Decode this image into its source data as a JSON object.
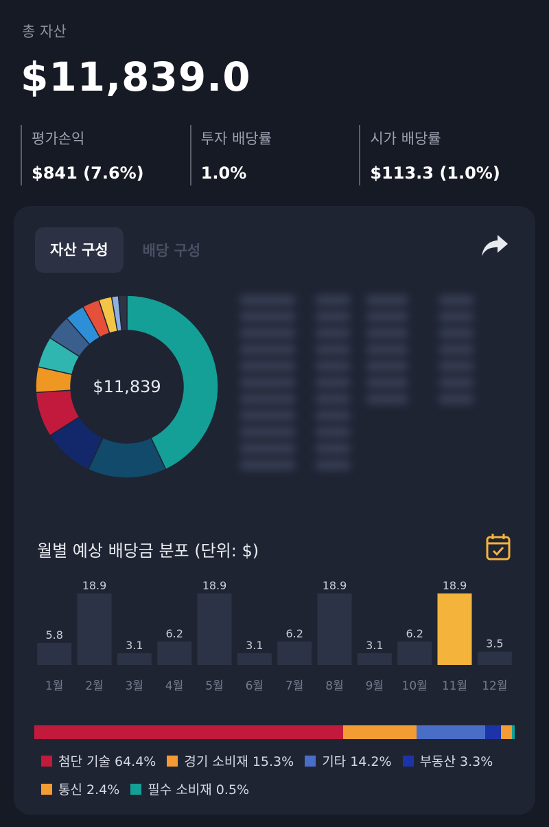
{
  "header": {
    "total_label": "총 자산",
    "total_value": "$11,839.0"
  },
  "stats": [
    {
      "label": "평가손익",
      "value": "$841 (7.6%)"
    },
    {
      "label": "투자 배당률",
      "value": "1.0%"
    },
    {
      "label": "시가 배당률",
      "value": "$113.3 (1.0%)"
    }
  ],
  "card": {
    "tab_active": "자산 구성",
    "tab_inactive": "배당 구성",
    "donut_center": "$11,839",
    "donut_segments": [
      {
        "pct": 43.0,
        "color": "#14a096"
      },
      {
        "pct": 14.0,
        "color": "#114a6b"
      },
      {
        "pct": 9.0,
        "color": "#13286a"
      },
      {
        "pct": 8.0,
        "color": "#c21a3c"
      },
      {
        "pct": 4.5,
        "color": "#ee9722"
      },
      {
        "pct": 5.5,
        "color": "#2fb6b0"
      },
      {
        "pct": 4.5,
        "color": "#3a5f8c"
      },
      {
        "pct": 3.5,
        "color": "#2d8fd8"
      },
      {
        "pct": 3.0,
        "color": "#e6503a"
      },
      {
        "pct": 2.3,
        "color": "#f4c544"
      },
      {
        "pct": 1.2,
        "color": "#8cb0e0"
      },
      {
        "pct": 1.5,
        "color": "#2d3446"
      }
    ],
    "monthly_title": "월별 예상 배당금 분포 (단위: $)"
  },
  "chart_data": {
    "type": "bar",
    "categories": [
      "1월",
      "2월",
      "3월",
      "4월",
      "5월",
      "6월",
      "7월",
      "8월",
      "9월",
      "10월",
      "11월",
      "12월"
    ],
    "values": [
      5.8,
      18.9,
      3.1,
      6.2,
      18.9,
      3.1,
      6.2,
      18.9,
      3.1,
      6.2,
      18.9,
      3.5
    ],
    "labels": [
      "5.8",
      "18.9",
      "3.1",
      "6.2",
      "18.9",
      "3.1",
      "6.2",
      "18.9",
      "3.1",
      "6.2",
      "18.9",
      "3.5"
    ],
    "highlight_index": 10,
    "bar_color": "#2c3347",
    "highlight_color": "#f4b43c",
    "ylim": [
      0,
      18.9
    ]
  },
  "sector": {
    "items": [
      {
        "label": "첨단 기술",
        "value": "64.4%",
        "pct": 64.4,
        "color": "#c21a3c"
      },
      {
        "label": "경기 소비재",
        "value": "15.3%",
        "pct": 15.3,
        "color": "#f39c34"
      },
      {
        "label": "기타",
        "value": "14.2%",
        "pct": 14.2,
        "color": "#4a6ec7"
      },
      {
        "label": "부동산",
        "value": "3.3%",
        "pct": 3.3,
        "color": "#1c34a8"
      },
      {
        "label": "통신",
        "value": "2.4%",
        "pct": 2.4,
        "color": "#f39c34"
      },
      {
        "label": "필수 소비재",
        "value": "0.5%",
        "pct": 0.5,
        "color": "#14a096"
      }
    ]
  }
}
